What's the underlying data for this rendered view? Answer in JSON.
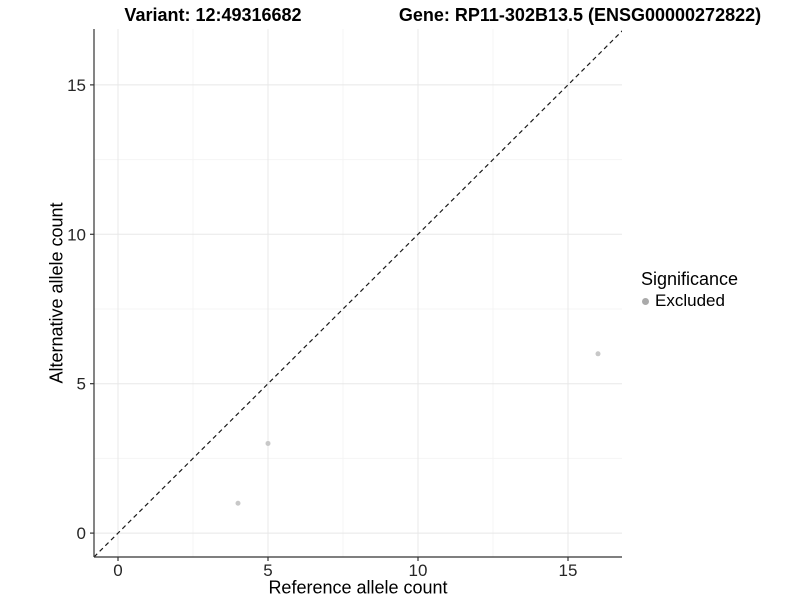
{
  "chart_data": {
    "type": "scatter",
    "titles": {
      "left": "Variant: 12:49316682",
      "right": "Gene: RP11-302B13.5 (ENSG00000272822)"
    },
    "xlabel": "Reference allele count",
    "ylabel": "Alternative allele count",
    "xlim": [
      -0.8,
      16.8
    ],
    "ylim": [
      -0.8,
      16.87
    ],
    "x_ticks": [
      0,
      5,
      10,
      15
    ],
    "y_ticks": [
      0,
      5,
      10,
      15
    ],
    "x_minor_ticks": [
      2.5,
      7.5,
      12.5
    ],
    "y_minor_ticks": [
      2.5,
      7.5,
      12.5
    ],
    "grid": true,
    "identity_line": {
      "shown": true,
      "style": "dashed",
      "equation": "y = x"
    },
    "series": [
      {
        "name": "Excluded",
        "color": "#c8c8c8",
        "points": [
          {
            "x": 4,
            "y": 1
          },
          {
            "x": 5,
            "y": 3
          },
          {
            "x": 16,
            "y": 6
          }
        ]
      }
    ],
    "legend": {
      "title": "Significance",
      "position": "right",
      "items": [
        {
          "label": "Excluded",
          "color": "#aaaaaa"
        }
      ]
    }
  },
  "colors": {
    "background": "#ffffff",
    "grid_major": "#e8e8e8",
    "grid_minor": "#f4f4f4",
    "axis_line": "#333333",
    "tick_label": "#262626",
    "dashed_line": "#1a1a1a",
    "point": "#c8c8c8"
  }
}
